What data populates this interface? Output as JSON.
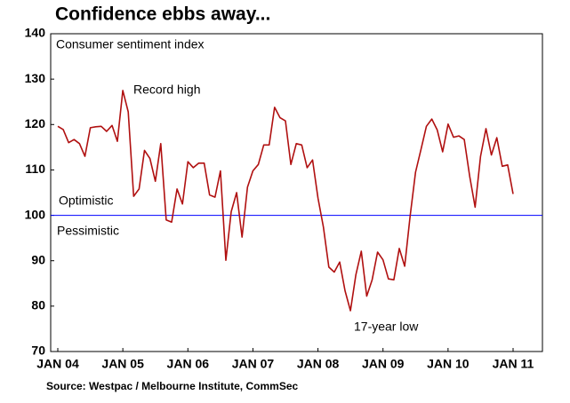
{
  "chart_data": {
    "type": "line",
    "title": "Confidence ebbs away...",
    "y_label": "Consumer sentiment index",
    "source": "Source: Westpac / Melbourne Institute, CommSec",
    "annotations": {
      "high": "Record high",
      "optimistic": "Optimistic",
      "pessimistic": "Pessimistic",
      "low": "17-year low"
    },
    "reference_line": {
      "value": 100,
      "color": "#0000ff"
    },
    "categories": [
      "JAN 04",
      null,
      null,
      null,
      null,
      null,
      null,
      null,
      null,
      null,
      null,
      null,
      "JAN 05",
      null,
      null,
      null,
      null,
      null,
      null,
      null,
      null,
      null,
      null,
      null,
      "JAN 06",
      null,
      null,
      null,
      null,
      null,
      null,
      null,
      null,
      null,
      null,
      null,
      "JAN 07",
      null,
      null,
      null,
      null,
      null,
      null,
      null,
      null,
      null,
      null,
      null,
      "JAN 08",
      null,
      null,
      null,
      null,
      null,
      null,
      null,
      null,
      null,
      null,
      null,
      "JAN 09",
      null,
      null,
      null,
      null,
      null,
      null,
      null,
      null,
      null,
      null,
      null,
      "JAN 10",
      null,
      null,
      null,
      null,
      null,
      null,
      null,
      null,
      null,
      null,
      null,
      "JAN 11"
    ],
    "values": [
      119.6,
      118.9,
      116,
      116.7,
      115.8,
      113,
      119.3,
      119.5,
      119.6,
      118.5,
      119.8,
      116.3,
      127.5,
      122.8,
      104.2,
      105.8,
      114.3,
      112.5,
      107.5,
      115.8,
      99,
      98.5,
      105.8,
      102.5,
      111.8,
      110.5,
      111.5,
      111.5,
      104.5,
      104,
      109.8,
      90.1,
      100.8,
      105,
      95.2,
      106.2,
      109.8,
      111.2,
      115.5,
      115.5,
      123.8,
      121.5,
      120.8,
      111.2,
      115.8,
      115.5,
      110.5,
      112.2,
      103.8,
      97.4,
      88.6,
      87.5,
      89.7,
      83.4,
      79,
      86.9,
      92.1,
      82.2,
      85.8,
      91.9,
      90.2,
      86,
      85.8,
      92.7,
      88.8,
      99.8,
      109.5,
      114.5,
      119.6,
      121.2,
      118.8,
      114,
      120.1,
      117.2,
      117.5,
      116.7,
      108.6,
      101.8,
      113,
      119.1,
      113.3,
      117.1,
      110.8,
      111.1,
      104.7
    ],
    "color": "#b01010",
    "ylim": [
      70,
      140
    ],
    "yticks": [
      70,
      80,
      90,
      100,
      110,
      120,
      130,
      140
    ],
    "grid": false
  }
}
